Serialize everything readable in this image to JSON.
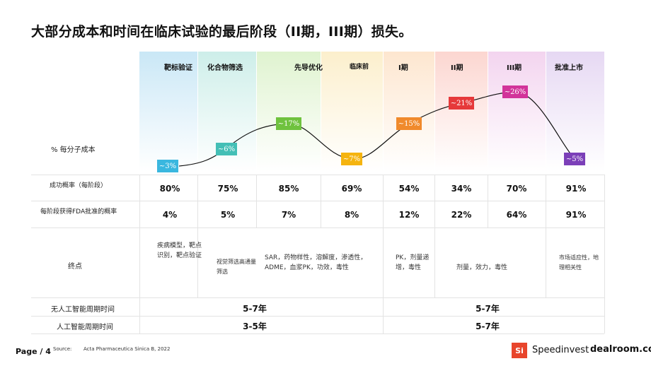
{
  "title": "大部分成本和时间在临床试验的最后阶段（II期，III期）损失。",
  "stages": [
    {
      "label": "靶标验证",
      "color": "#c9e7f6"
    },
    {
      "label": "化合物筛选",
      "color": "#cdeee9"
    },
    {
      "label": "先导优化",
      "color": "#dff3cf"
    },
    {
      "label": "临床前",
      "color": "#fcefcc"
    },
    {
      "label": "I期",
      "color": "#fde6cf"
    },
    {
      "label": "II期",
      "color": "#fcd6d0"
    },
    {
      "label": "III期",
      "color": "#f3d4ef"
    },
    {
      "label": "批准上市",
      "color": "#e6d8f3"
    }
  ],
  "cost_row_label": "% 每分子成本",
  "cost_markers": [
    {
      "text": "~3%",
      "value": 3,
      "color": "#3ab7df"
    },
    {
      "text": "~6%",
      "value": 6,
      "color": "#44bfb6"
    },
    {
      "text": "~17%",
      "value": 17,
      "color": "#6fc23e"
    },
    {
      "text": "~7%",
      "value": 7,
      "color": "#f5b40f"
    },
    {
      "text": "~15%",
      "value": 15,
      "color": "#f08a2c"
    },
    {
      "text": "~21%",
      "value": 21,
      "color": "#e6393a"
    },
    {
      "text": "~26%",
      "value": 26,
      "color": "#d2349a"
    },
    {
      "text": "~5%",
      "value": 5,
      "color": "#7b3fb8"
    }
  ],
  "success_row_label": "成功概率（每阶段）",
  "success_values": [
    "80%",
    "75%",
    "85%",
    "69%",
    "54%",
    "34%",
    "70%",
    "91%"
  ],
  "fda_row_label": "每阶段获得FDA批准的概率",
  "fda_values": [
    "4%",
    "5%",
    "7%",
    "8%",
    "12%",
    "22%",
    "64%",
    "91%"
  ],
  "endpoint_row_label": "终点",
  "endpoints": {
    "target": "疾病模型，靶点识别，靶点验证",
    "screening": "视觉筛选高通量筛选",
    "lead": "SAR，药物样性，溶解度，渗透性，ADME，血浆PK，功效，毒性",
    "phase1": "PK，剂量递增，毒性",
    "phase23": "剂量，效力，毒性",
    "approval": "市场适应性，地理相关性"
  },
  "no_ai_label": "无人工智能周期时间",
  "no_ai_discovery": "5-7年",
  "no_ai_clinical": "5-7年",
  "ai_label": "人工智能周期时间",
  "ai_discovery": "3-5年",
  "ai_clinical": "5-7年",
  "footer": {
    "page": "Page / 4",
    "source_label": "Source:",
    "source": "Acta Pharmaceutica Sinica B, 2022",
    "brand1_mark": "Si",
    "brand1": "Speedinvest",
    "brand2": "dealroom.co"
  }
}
